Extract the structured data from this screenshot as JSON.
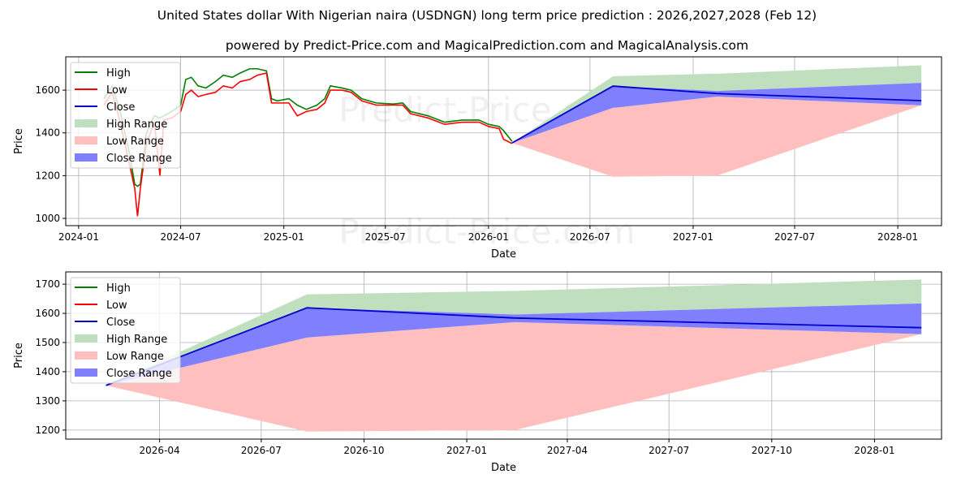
{
  "title": "United States dollar With Nigerian naira (USDNGN) long term price prediction : 2026,2027,2028 (Feb 12)",
  "subtitle": "powered by Predict-Price.com and MagicalPrediction.com and MagicalAnalysis.com",
  "watermark": "Predict-Price.com",
  "colors": {
    "high": "#008000",
    "low": "#ff0000",
    "close": "#0000cc",
    "high_range": "#bfdfbf",
    "low_range": "#ffbfbf",
    "close_range": "#8080ff"
  },
  "legend": [
    "High",
    "Low",
    "Close",
    "High Range",
    "Low Range",
    "Close Range"
  ],
  "chart_data": [
    {
      "type": "line",
      "xlabel": "Date",
      "ylabel": "Price",
      "xlim": [
        "2023-12-09",
        "2028-03-19"
      ],
      "ylim": [
        966,
        1756
      ],
      "yticks": [
        1000,
        1200,
        1400,
        1600
      ],
      "xticks": [
        "2024-01",
        "2024-07",
        "2025-01",
        "2025-07",
        "2026-01",
        "2026-07",
        "2027-01",
        "2027-07",
        "2028-01"
      ],
      "grid": true,
      "legend_position": "top-left",
      "history": {
        "dates": [
          "2024-02-15",
          "2024-03-01",
          "2024-03-15",
          "2024-04-01",
          "2024-04-10",
          "2024-04-15",
          "2024-04-20",
          "2024-05-01",
          "2024-05-15",
          "2024-05-25",
          "2024-06-01",
          "2024-06-15",
          "2024-07-01",
          "2024-07-10",
          "2024-07-20",
          "2024-08-01",
          "2024-08-15",
          "2024-09-01",
          "2024-09-15",
          "2024-10-01",
          "2024-10-15",
          "2024-11-01",
          "2024-11-15",
          "2024-12-01",
          "2024-12-10",
          "2024-12-20",
          "2025-01-10",
          "2025-01-25",
          "2025-02-10",
          "2025-03-01",
          "2025-03-15",
          "2025-03-25",
          "2025-04-15",
          "2025-05-01",
          "2025-05-20",
          "2025-06-15",
          "2025-07-15",
          "2025-08-01",
          "2025-08-15",
          "2025-09-15",
          "2025-10-15",
          "2025-11-15",
          "2025-12-15",
          "2026-01-01",
          "2026-01-20",
          "2026-01-28",
          "2026-02-12"
        ],
        "high": [
          1560,
          1620,
          1500,
          1300,
          1160,
          1150,
          1160,
          1400,
          1480,
          1470,
          1480,
          1500,
          1530,
          1650,
          1660,
          1620,
          1610,
          1640,
          1670,
          1660,
          1680,
          1700,
          1700,
          1690,
          1560,
          1550,
          1560,
          1530,
          1510,
          1530,
          1560,
          1620,
          1610,
          1600,
          1560,
          1540,
          1535,
          1540,
          1500,
          1480,
          1450,
          1460,
          1460,
          1440,
          1430,
          1410,
          1360
        ],
        "low": [
          1530,
          1590,
          1450,
          1250,
          1140,
          1010,
          1140,
          1350,
          1450,
          1200,
          1460,
          1470,
          1500,
          1580,
          1600,
          1570,
          1580,
          1590,
          1620,
          1610,
          1640,
          1650,
          1670,
          1680,
          1540,
          1540,
          1540,
          1480,
          1500,
          1510,
          1540,
          1600,
          1600,
          1590,
          1550,
          1530,
          1530,
          1530,
          1490,
          1470,
          1440,
          1450,
          1450,
          1430,
          1420,
          1370,
          1350
        ]
      },
      "forecast": {
        "dates": [
          "2026-02-12",
          "2026-08-11",
          "2027-02-13",
          "2028-02-12"
        ],
        "close": [
          1353,
          1619,
          1584,
          1551
        ],
        "high_range": [
          [
            1353,
            1353
          ],
          [
            1619,
            1665
          ],
          [
            1596,
            1677
          ],
          [
            1634,
            1716
          ]
        ],
        "low_range": [
          [
            1353,
            1353
          ],
          [
            1195,
            1517
          ],
          [
            1200,
            1570
          ],
          [
            1529,
            1529
          ]
        ],
        "close_range": [
          [
            1353,
            1353
          ],
          [
            1517,
            1619
          ],
          [
            1570,
            1596
          ],
          [
            1529,
            1634
          ]
        ]
      }
    },
    {
      "type": "area",
      "xlabel": "Date",
      "ylabel": "Price",
      "xlim": [
        "2026-01-07",
        "2028-03-01"
      ],
      "ylim": [
        1169,
        1742
      ],
      "yticks": [
        1200,
        1300,
        1400,
        1500,
        1600,
        1700
      ],
      "xticks": [
        "2026-04",
        "2026-07",
        "2026-10",
        "2027-01",
        "2027-04",
        "2027-07",
        "2027-10",
        "2028-01"
      ],
      "grid": true,
      "legend_position": "top-left",
      "forecast": {
        "dates": [
          "2026-02-12",
          "2026-08-11",
          "2027-02-13",
          "2028-02-12"
        ],
        "close": [
          1353,
          1619,
          1584,
          1551
        ],
        "high_range": [
          [
            1353,
            1353
          ],
          [
            1619,
            1665
          ],
          [
            1596,
            1677
          ],
          [
            1634,
            1716
          ]
        ],
        "low_range": [
          [
            1353,
            1353
          ],
          [
            1195,
            1517
          ],
          [
            1200,
            1570
          ],
          [
            1529,
            1529
          ]
        ],
        "close_range": [
          [
            1353,
            1353
          ],
          [
            1517,
            1619
          ],
          [
            1570,
            1596
          ],
          [
            1529,
            1634
          ]
        ]
      }
    }
  ]
}
